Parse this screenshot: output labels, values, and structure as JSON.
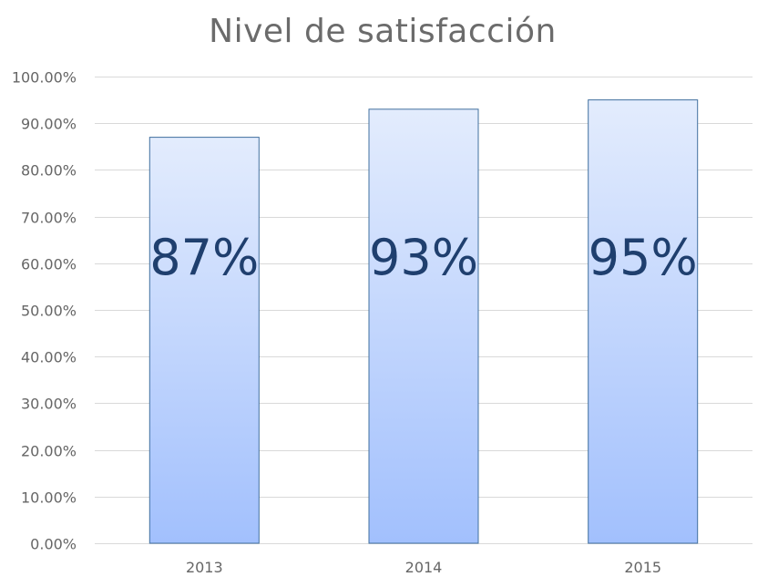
{
  "chart_data": {
    "type": "bar",
    "title": "Nivel de satisfacción",
    "xlabel": "",
    "ylabel": "",
    "categories": [
      "2013",
      "2014",
      "2015"
    ],
    "values": [
      0.87,
      0.93,
      0.95
    ],
    "data_labels": [
      "87%",
      "93%",
      "95%"
    ],
    "ylim": [
      0,
      1
    ],
    "yticks": [
      0,
      0.1,
      0.2,
      0.3,
      0.4,
      0.5,
      0.6,
      0.7,
      0.8,
      0.9,
      1.0
    ],
    "ytick_labels": [
      "0.00%",
      "10.00%",
      "20.00%",
      "30.00%",
      "40.00%",
      "50.00%",
      "60.00%",
      "70.00%",
      "80.00%",
      "90.00%",
      "100.00%"
    ],
    "grid": true,
    "legend": "none",
    "colors": {
      "bar_fill_top": "#e3ecfd",
      "bar_fill_bottom": "#a2c0fd",
      "bar_border": "#41709f",
      "gridline": "#d9d9d9",
      "axis_text": "#666666",
      "data_label": "#1f3f6e",
      "title": "#6b6b6b"
    }
  }
}
